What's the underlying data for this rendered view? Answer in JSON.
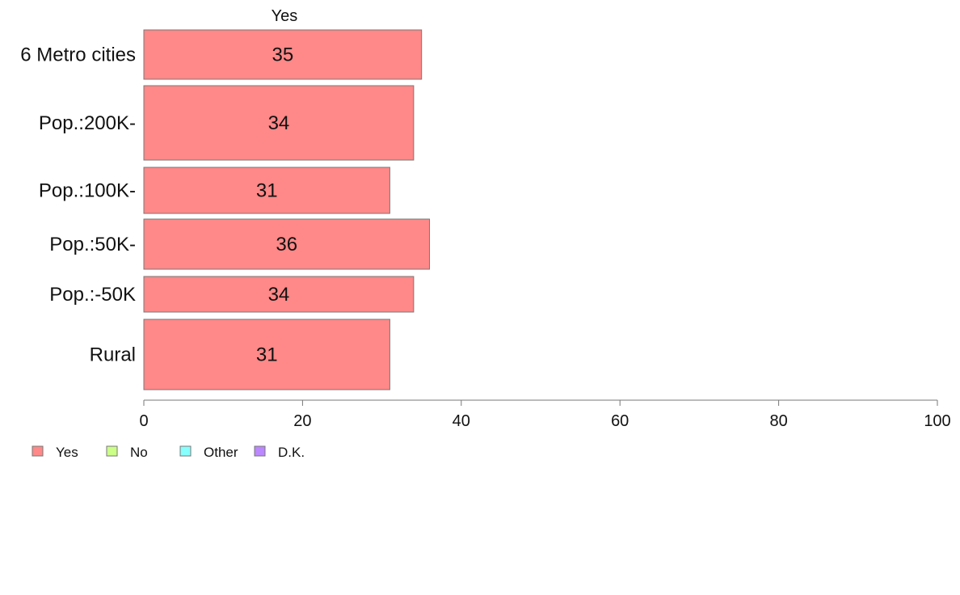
{
  "chart_data": {
    "type": "bar",
    "orientation": "horizontal",
    "series_heading": "Yes",
    "categories": [
      "6 Metro cities",
      "Pop.:200K-",
      "Pop.:100K-",
      "Pop.:50K-",
      "Pop.:-50K",
      "Rural"
    ],
    "series": [
      {
        "name": "Yes",
        "values": [
          35,
          34,
          31,
          36,
          34,
          31
        ],
        "color": "#ff8888"
      }
    ],
    "xlim": [
      0,
      100
    ],
    "xticks": [
      0,
      20,
      40,
      60,
      80,
      100
    ],
    "grid": false,
    "legend": {
      "placement": "bottom-left",
      "items": [
        {
          "label": "Yes",
          "color": "#ff8888"
        },
        {
          "label": "No",
          "color": "#ccff88"
        },
        {
          "label": "Other",
          "color": "#88ffff"
        },
        {
          "label": "D.K.",
          "color": "#bb88ff"
        }
      ]
    }
  }
}
